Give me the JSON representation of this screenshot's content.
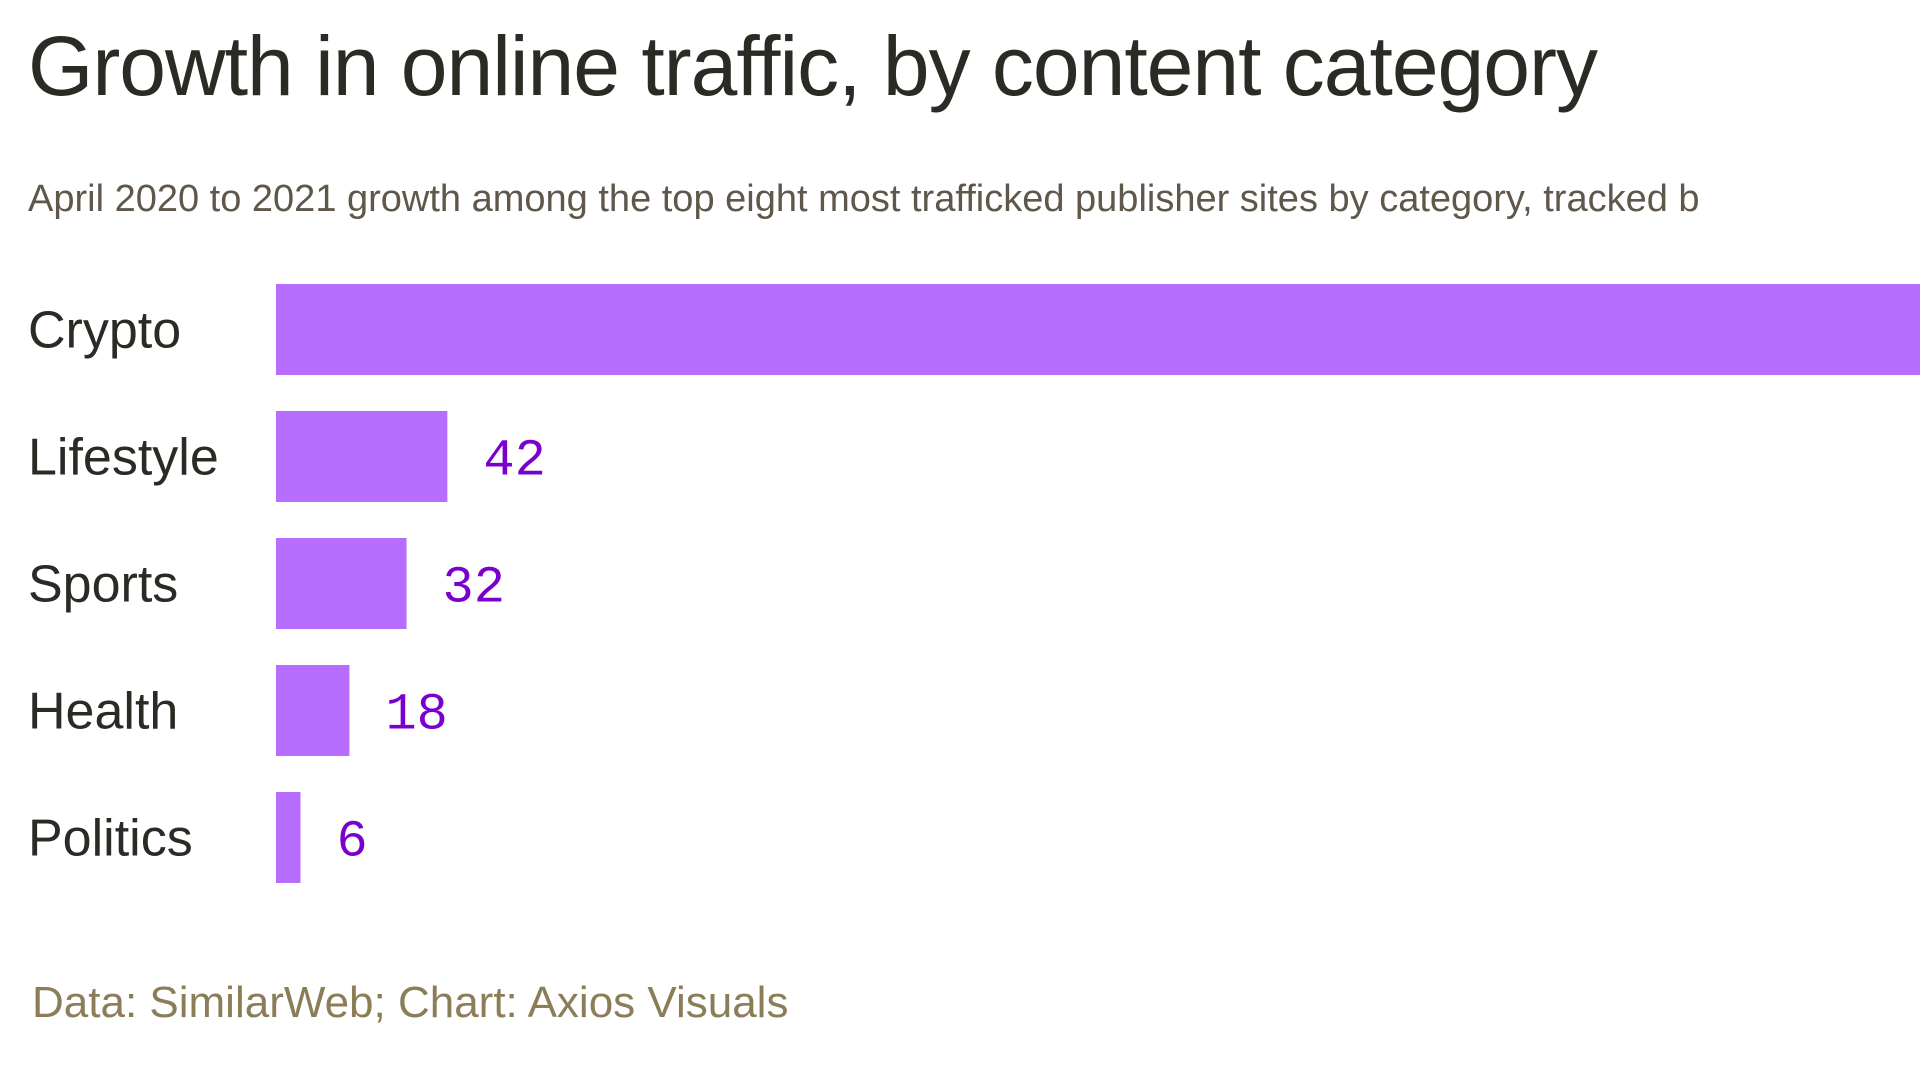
{
  "chart_data": {
    "type": "bar",
    "orientation": "horizontal",
    "title": "Growth in online traffic, by content category",
    "subtitle": "April 2020 to 2021 growth among the top eight most trafficked publisher sites by category, tracked b",
    "categories": [
      "Crypto",
      "Lifestyle",
      "Sports",
      "Health",
      "Politics"
    ],
    "values": [
      null,
      42,
      32,
      18,
      6
    ],
    "value_labels": [
      "",
      "42",
      "32",
      "18",
      "6"
    ],
    "xlabel": "",
    "ylabel": "",
    "grid": false,
    "bar_color": "#b76eff",
    "label_color": "#7a00cc",
    "source": "Data: SimilarWeb; Chart: Axios Visuals"
  }
}
